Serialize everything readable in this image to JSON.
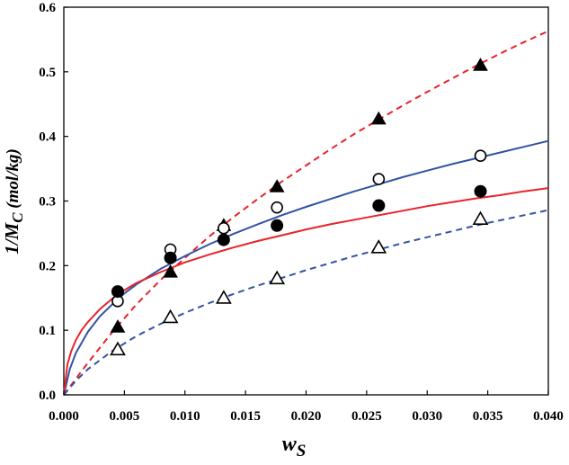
{
  "chart_data": {
    "type": "scatter",
    "title": "",
    "xlabel": {
      "main": "w",
      "sub": "S"
    },
    "ylabel": {
      "main": "1/M",
      "sub": "C",
      "unit": " (mol/kg)"
    },
    "xlim": [
      0,
      0.04
    ],
    "ylim": [
      0,
      0.6
    ],
    "x_ticks": [
      "0.000",
      "0.005",
      "0.010",
      "0.015",
      "0.020",
      "0.025",
      "0.030",
      "0.035",
      "0.040"
    ],
    "y_ticks": [
      "0.0",
      "0.1",
      "0.2",
      "0.3",
      "0.4",
      "0.5",
      "0.6"
    ],
    "grid": false,
    "legend": "none",
    "series": [
      {
        "marker": "filled-triangle",
        "x": [
          0.00445,
          0.0088,
          0.0132,
          0.0176,
          0.026,
          0.0344
        ],
        "y": [
          0.105,
          0.19,
          0.262,
          0.322,
          0.427,
          0.51
        ],
        "fit": {
          "style": "dashed",
          "color": "#e8232a",
          "x": [
            0,
            0.002,
            0.004,
            0.006,
            0.008,
            0.01,
            0.012,
            0.014,
            0.016,
            0.018,
            0.02,
            0.022,
            0.024,
            0.026,
            0.028,
            0.03,
            0.032,
            0.034,
            0.036,
            0.038,
            0.04
          ],
          "y": [
            0,
            0.05,
            0.097,
            0.14,
            0.178,
            0.212,
            0.245,
            0.275,
            0.303,
            0.33,
            0.355,
            0.38,
            0.404,
            0.426,
            0.448,
            0.469,
            0.489,
            0.509,
            0.528,
            0.546,
            0.563
          ]
        }
      },
      {
        "marker": "open-circle",
        "x": [
          0.00445,
          0.0088,
          0.0132,
          0.0176,
          0.026,
          0.0344
        ],
        "y": [
          0.145,
          0.225,
          0.258,
          0.29,
          0.334,
          0.37
        ],
        "fit": {
          "style": "solid",
          "color": "#3353a4",
          "x": [
            0,
            0.0005,
            0.001,
            0.002,
            0.003,
            0.004,
            0.005,
            0.006,
            0.008,
            0.01,
            0.012,
            0.014,
            0.016,
            0.018,
            0.02,
            0.022,
            0.024,
            0.026,
            0.028,
            0.03,
            0.032,
            0.034,
            0.036,
            0.038,
            0.04
          ],
          "y": [
            0,
            0.04,
            0.065,
            0.098,
            0.122,
            0.14,
            0.157,
            0.171,
            0.195,
            0.215,
            0.233,
            0.249,
            0.264,
            0.278,
            0.291,
            0.303,
            0.315,
            0.326,
            0.337,
            0.347,
            0.357,
            0.366,
            0.375,
            0.384,
            0.393
          ]
        }
      },
      {
        "marker": "filled-circle",
        "x": [
          0.00445,
          0.0088,
          0.0132,
          0.0176,
          0.026,
          0.0344
        ],
        "y": [
          0.16,
          0.212,
          0.24,
          0.262,
          0.293,
          0.315
        ],
        "fit": {
          "style": "solid",
          "color": "#e8232a",
          "x": [
            0,
            0.0003,
            0.0006,
            0.001,
            0.0015,
            0.002,
            0.003,
            0.004,
            0.005,
            0.006,
            0.008,
            0.01,
            0.012,
            0.014,
            0.016,
            0.018,
            0.02,
            0.022,
            0.024,
            0.026,
            0.028,
            0.03,
            0.032,
            0.034,
            0.036,
            0.038,
            0.04
          ],
          "y": [
            0,
            0.047,
            0.067,
            0.085,
            0.101,
            0.113,
            0.133,
            0.149,
            0.162,
            0.173,
            0.19,
            0.205,
            0.217,
            0.228,
            0.238,
            0.247,
            0.256,
            0.264,
            0.271,
            0.278,
            0.285,
            0.292,
            0.298,
            0.304,
            0.309,
            0.315,
            0.32
          ]
        }
      },
      {
        "marker": "open-triangle",
        "x": [
          0.00445,
          0.0088,
          0.0132,
          0.0176,
          0.026,
          0.0344
        ],
        "y": [
          0.07,
          0.12,
          0.15,
          0.18,
          0.228,
          0.272
        ],
        "fit": {
          "style": "dashed",
          "color": "#3353a4",
          "x": [
            0,
            0.001,
            0.002,
            0.004,
            0.006,
            0.008,
            0.01,
            0.012,
            0.014,
            0.016,
            0.018,
            0.02,
            0.022,
            0.024,
            0.026,
            0.028,
            0.03,
            0.032,
            0.034,
            0.036,
            0.038,
            0.04
          ],
          "y": [
            0,
            0.022,
            0.04,
            0.068,
            0.091,
            0.11,
            0.127,
            0.142,
            0.156,
            0.169,
            0.181,
            0.193,
            0.204,
            0.215,
            0.225,
            0.235,
            0.244,
            0.253,
            0.262,
            0.27,
            0.278,
            0.286
          ]
        }
      }
    ]
  }
}
